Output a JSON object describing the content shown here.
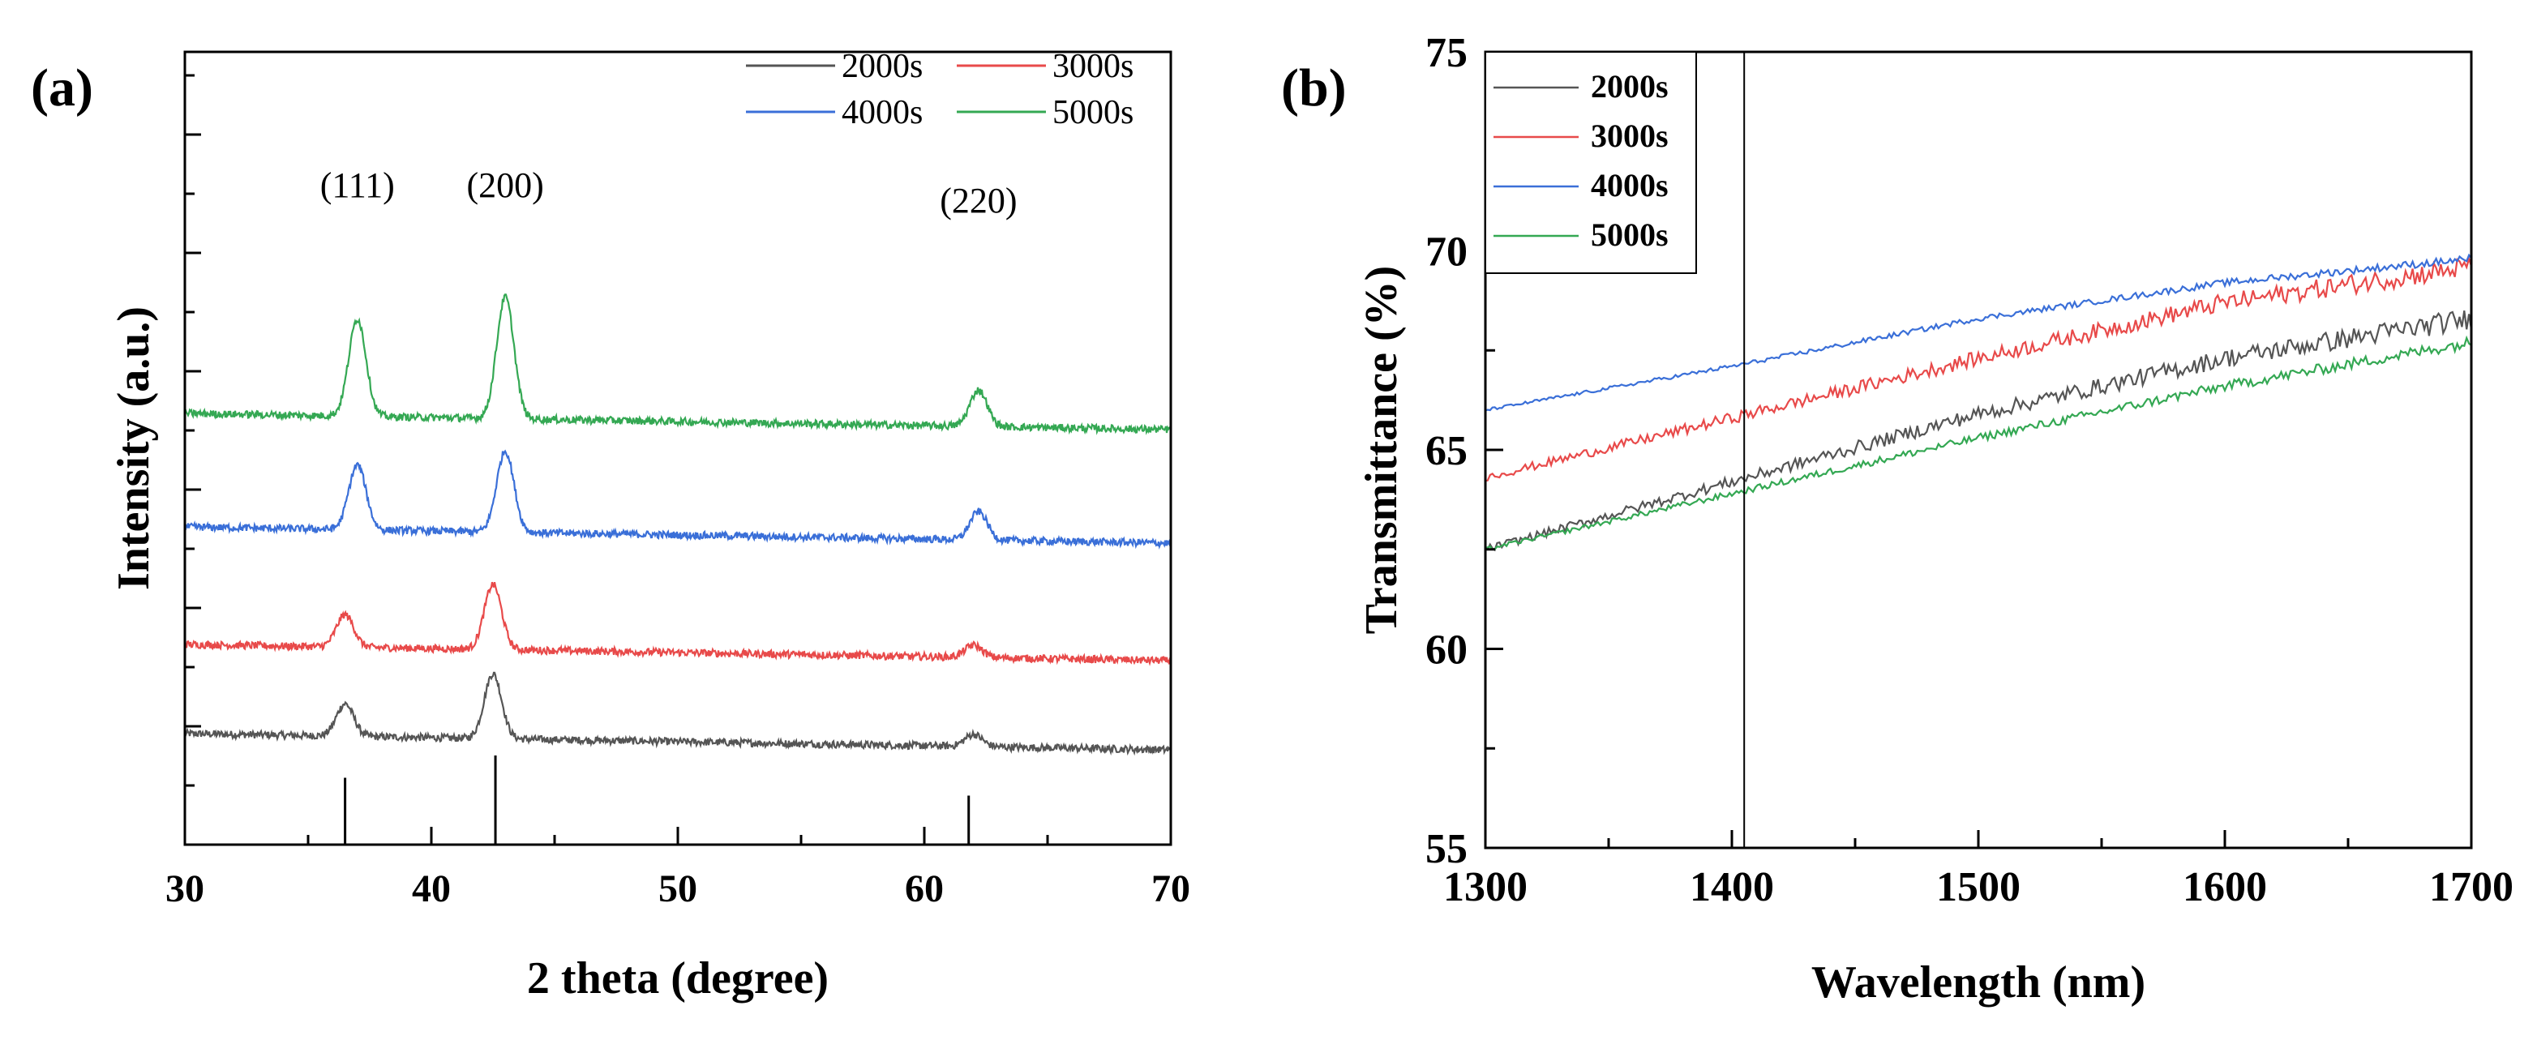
{
  "chart_data": [
    {
      "type": "line",
      "panel_label": "(a)",
      "xlabel": "2 theta (degree)",
      "ylabel": "Intensity (a.u.)",
      "xlim": [
        30,
        70
      ],
      "xticks": [
        30,
        40,
        50,
        60,
        70
      ],
      "yticks_labeled": false,
      "legend": {
        "position": "top-right",
        "columns": 2
      },
      "series": [
        {
          "name": "2000s",
          "color": "#555555",
          "offset": 0,
          "peaks": [
            {
              "x": 36.5,
              "h": 0.4
            },
            {
              "x": 42.5,
              "h": 0.8
            },
            {
              "x": 62.0,
              "h": 0.15
            }
          ]
        },
        {
          "name": "3000s",
          "color": "#e84a4a",
          "offset": 1.1,
          "peaks": [
            {
              "x": 36.5,
              "h": 0.4
            },
            {
              "x": 42.5,
              "h": 0.8
            },
            {
              "x": 62.0,
              "h": 0.15
            }
          ]
        },
        {
          "name": "4000s",
          "color": "#3a6fd8",
          "offset": 2.55,
          "peaks": [
            {
              "x": 37.0,
              "h": 0.8
            },
            {
              "x": 43.0,
              "h": 1.0
            },
            {
              "x": 62.2,
              "h": 0.35
            }
          ]
        },
        {
          "name": "5000s",
          "color": "#34a853",
          "offset": 3.95,
          "peaks": [
            {
              "x": 37.0,
              "h": 1.2
            },
            {
              "x": 43.0,
              "h": 1.5
            },
            {
              "x": 62.2,
              "h": 0.45
            }
          ]
        }
      ],
      "reference_peaks": [
        {
          "x": 36.5,
          "h": 0.75
        },
        {
          "x": 42.6,
          "h": 1.0
        },
        {
          "x": 61.8,
          "h": 0.55
        }
      ],
      "annotations": [
        {
          "text": "(111)",
          "x": 37.0
        },
        {
          "text": "(200)",
          "x": 43.0
        },
        {
          "text": "(220)",
          "x": 62.2
        }
      ]
    },
    {
      "type": "line",
      "panel_label": "(b)",
      "xlabel": "Wavelength (nm)",
      "ylabel": "Transmittance (%)",
      "xlim": [
        1300,
        1700
      ],
      "ylim": [
        55,
        75
      ],
      "xticks": [
        1300,
        1400,
        1500,
        1600,
        1700
      ],
      "yticks": [
        55,
        60,
        65,
        70,
        75
      ],
      "vertical_line_x": 1405,
      "legend": {
        "position": "top-left"
      },
      "series": [
        {
          "name": "2000s",
          "color": "#555555",
          "x": [
            1300,
            1400,
            1500,
            1600,
            1700
          ],
          "y": [
            62.5,
            64.2,
            65.9,
            67.3,
            68.3
          ]
        },
        {
          "name": "3000s",
          "color": "#e84a4a",
          "x": [
            1300,
            1400,
            1500,
            1600,
            1700
          ],
          "y": [
            64.3,
            65.8,
            67.3,
            68.7,
            69.6
          ]
        },
        {
          "name": "4000s",
          "color": "#3a6fd8",
          "x": [
            1300,
            1400,
            1500,
            1600,
            1700
          ],
          "y": [
            66.0,
            67.1,
            68.3,
            69.2,
            69.8
          ]
        },
        {
          "name": "5000s",
          "color": "#34a853",
          "x": [
            1300,
            1400,
            1500,
            1600,
            1700
          ],
          "y": [
            62.5,
            63.9,
            65.3,
            66.6,
            67.7
          ]
        }
      ]
    }
  ]
}
